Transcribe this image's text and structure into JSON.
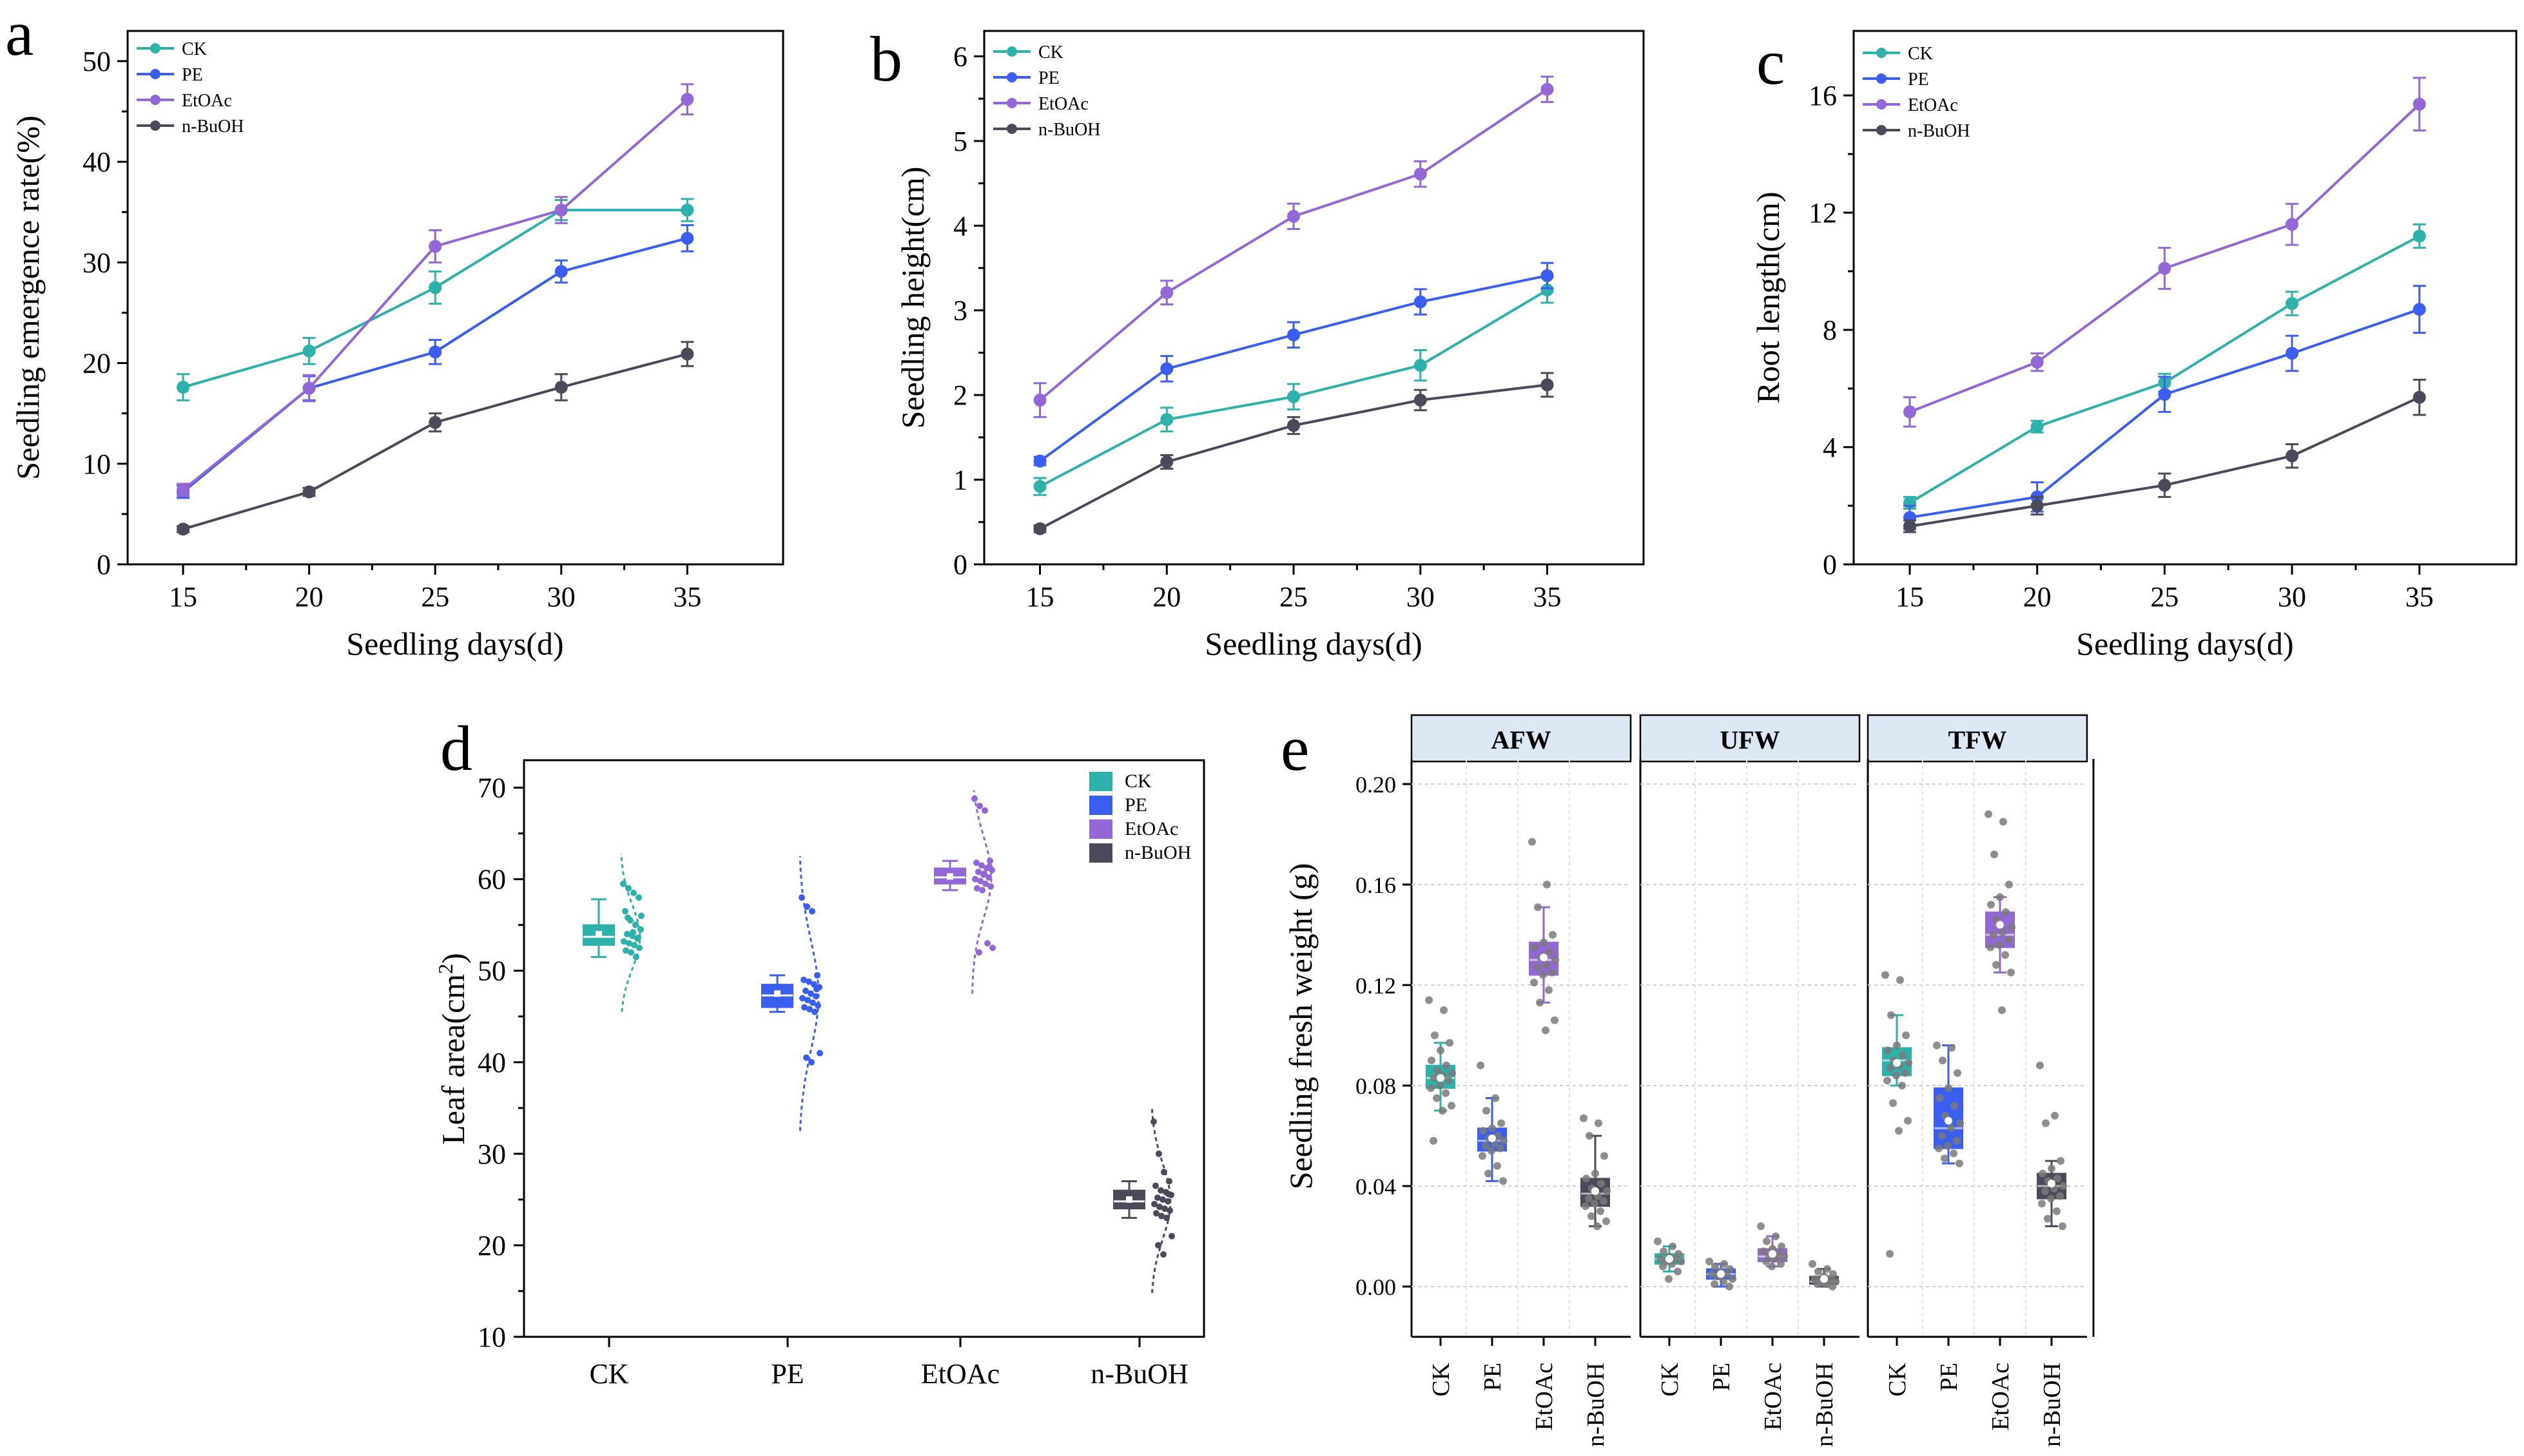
{
  "colors": {
    "CK": "#2fb1ab",
    "PE": "#3a5ff0",
    "EtOAc": "#9467d6",
    "n-BuOH": "#4a4a5a",
    "strip_fill": "#dce8f4"
  },
  "chart_data": [
    {
      "panel": "a",
      "type": "line",
      "xlabel": "Seedling days(d)",
      "ylabel": "Seedling emergence rate(%)",
      "x": [
        15,
        20,
        25,
        30,
        35
      ],
      "xticks": [
        "15",
        "20",
        "25",
        "30",
        "35"
      ],
      "yticks": [
        "0",
        "10",
        "20",
        "30",
        "40",
        "50"
      ],
      "ylim": [
        0,
        53
      ],
      "legend": "top-left",
      "series": [
        {
          "name": "CK",
          "values": [
            17.6,
            21.2,
            27.5,
            35.2,
            35.2
          ],
          "err": [
            1.3,
            1.3,
            1.6,
            1.0,
            1.1
          ]
        },
        {
          "name": "PE",
          "values": [
            7.2,
            17.5,
            21.1,
            29.1,
            32.4
          ],
          "err": [
            0.6,
            1.2,
            1.2,
            1.1,
            1.3
          ]
        },
        {
          "name": "EtOAc",
          "values": [
            7.4,
            17.5,
            31.6,
            35.2,
            46.2
          ],
          "err": [
            0.6,
            1.3,
            1.6,
            1.3,
            1.5
          ]
        },
        {
          "name": "n-BuOH",
          "values": [
            3.5,
            7.2,
            14.1,
            17.6,
            20.9
          ],
          "err": [
            0.3,
            0.4,
            0.9,
            1.3,
            1.2
          ]
        }
      ]
    },
    {
      "panel": "b",
      "type": "line",
      "xlabel": "Seedling days(d)",
      "ylabel": "Seedling height(cm)",
      "x": [
        15,
        20,
        25,
        30,
        35
      ],
      "xticks": [
        "15",
        "20",
        "25",
        "30",
        "35"
      ],
      "yticks": [
        "0",
        "1",
        "2",
        "3",
        "4",
        "5",
        "6"
      ],
      "ylim": [
        0,
        6.3
      ],
      "legend": "top-left",
      "series": [
        {
          "name": "CK",
          "values": [
            0.92,
            1.71,
            1.98,
            2.35,
            3.24
          ],
          "err": [
            0.1,
            0.14,
            0.15,
            0.18,
            0.15
          ]
        },
        {
          "name": "PE",
          "values": [
            1.22,
            2.31,
            2.71,
            3.1,
            3.41
          ],
          "err": [
            0.05,
            0.15,
            0.15,
            0.15,
            0.15
          ]
        },
        {
          "name": "EtOAc",
          "values": [
            1.94,
            3.21,
            4.11,
            4.61,
            5.61
          ],
          "err": [
            0.2,
            0.14,
            0.15,
            0.15,
            0.15
          ]
        },
        {
          "name": "n-BuOH",
          "values": [
            0.42,
            1.21,
            1.64,
            1.94,
            2.12
          ],
          "err": [
            0.04,
            0.08,
            0.1,
            0.12,
            0.14
          ]
        }
      ]
    },
    {
      "panel": "c",
      "type": "line",
      "xlabel": "Seedling days(d)",
      "ylabel": "Root length(cm)",
      "x": [
        15,
        20,
        25,
        30,
        35
      ],
      "xticks": [
        "15",
        "20",
        "25",
        "30",
        "35"
      ],
      "yticks": [
        "0",
        "4",
        "8",
        "12",
        "16"
      ],
      "ylim": [
        0,
        18.2
      ],
      "legend": "top-left",
      "series": [
        {
          "name": "CK",
          "values": [
            2.1,
            4.7,
            6.2,
            8.9,
            11.2
          ],
          "err": [
            0.2,
            0.2,
            0.3,
            0.4,
            0.4
          ]
        },
        {
          "name": "PE",
          "values": [
            1.6,
            2.3,
            5.8,
            7.2,
            8.7
          ],
          "err": [
            0.4,
            0.5,
            0.6,
            0.6,
            0.8
          ]
        },
        {
          "name": "EtOAc",
          "values": [
            5.2,
            6.9,
            10.1,
            11.6,
            15.7
          ],
          "err": [
            0.5,
            0.3,
            0.7,
            0.7,
            0.9
          ]
        },
        {
          "name": "n-BuOH",
          "values": [
            1.3,
            2.0,
            2.7,
            3.7,
            5.7
          ],
          "err": [
            0.2,
            0.3,
            0.4,
            0.4,
            0.6
          ]
        }
      ]
    },
    {
      "panel": "d",
      "type": "box",
      "xlabel": "",
      "ylabel": "Leaf area(cm²)",
      "ylabel_main": "Leaf area(cm",
      "ylabel_sup": "2",
      "ylabel_end": ")",
      "categories": [
        "CK",
        "PE",
        "EtOAc",
        "n-BuOH"
      ],
      "yticks": [
        "10",
        "20",
        "30",
        "40",
        "50",
        "60",
        "70"
      ],
      "ylim": [
        10,
        73
      ],
      "legend": "top-right",
      "groups": [
        {
          "name": "CK",
          "q1": 52.8,
          "median": 53.7,
          "q3": 55.0,
          "whisker_low": 51.5,
          "whisker_high": 57.8,
          "mean": 54.0,
          "density_min": 45.5,
          "density_max": 62.8,
          "points": [
            59.5,
            59,
            58.5,
            58,
            56.5,
            55.5,
            55,
            54.5,
            54,
            53.8,
            53.5,
            53.2,
            53,
            52.8,
            52.5,
            52.2,
            52,
            51.5,
            56,
            55.8,
            54.2,
            53.6
          ]
        },
        {
          "name": "PE",
          "q1": 46.0,
          "median": 47.3,
          "q3": 48.5,
          "whisker_low": 45.5,
          "whisker_high": 49.5,
          "mean": 47.5,
          "density_min": 32.5,
          "density_max": 62.5,
          "points": [
            58,
            57,
            56.5,
            49.5,
            49,
            48.8,
            48.5,
            48.2,
            47.8,
            47.5,
            47.2,
            47,
            46.8,
            46.5,
            46.2,
            46,
            45.8,
            45.5,
            41,
            40.5,
            40,
            48
          ]
        },
        {
          "name": "EtOAc",
          "q1": 59.5,
          "median": 60.2,
          "q3": 61.2,
          "whisker_low": 58.8,
          "whisker_high": 62.0,
          "mean": 60.3,
          "density_min": 47.5,
          "density_max": 69.7,
          "points": [
            68.8,
            68,
            67.5,
            62,
            61.8,
            61.5,
            61.2,
            61,
            60.8,
            60.5,
            60.2,
            60,
            59.8,
            59.5,
            59.2,
            59,
            58.8,
            53,
            52.5,
            52,
            60.6,
            61.4
          ]
        },
        {
          "name": "n-BuOH",
          "q1": 24.0,
          "median": 24.8,
          "q3": 26.0,
          "whisker_low": 23.0,
          "whisker_high": 27.0,
          "mean": 25.0,
          "density_min": 14.8,
          "density_max": 35.2,
          "points": [
            33.5,
            30,
            28,
            27,
            26.5,
            26,
            25.8,
            25.5,
            25.2,
            25,
            24.8,
            24.5,
            24.2,
            24,
            23.8,
            23.5,
            23.2,
            23,
            21,
            20,
            19,
            25.6
          ]
        }
      ]
    },
    {
      "panel": "e",
      "type": "box",
      "xlabel": "",
      "ylabel": "Seedling fresh weight (g)",
      "facets": [
        "AFW",
        "UFW",
        "TFW"
      ],
      "categories": [
        "CK",
        "PE",
        "EtOAc",
        "n-BuOH"
      ],
      "yticks": [
        "0.00",
        "0.04",
        "0.08",
        "0.12",
        "0.16",
        "0.20"
      ],
      "ylim": [
        -0.02,
        0.21
      ],
      "groups": [
        {
          "facet": "AFW",
          "name": "CK",
          "q1": 0.079,
          "median": 0.083,
          "q3": 0.088,
          "whisker_low": 0.07,
          "whisker_high": 0.097,
          "mean": 0.083,
          "points": [
            0.114,
            0.11,
            0.1,
            0.097,
            0.094,
            0.09,
            0.088,
            0.086,
            0.085,
            0.084,
            0.083,
            0.082,
            0.08,
            0.079,
            0.077,
            0.075,
            0.072,
            0.07,
            0.058
          ]
        },
        {
          "facet": "AFW",
          "name": "PE",
          "q1": 0.054,
          "median": 0.058,
          "q3": 0.063,
          "whisker_low": 0.042,
          "whisker_high": 0.075,
          "mean": 0.059,
          "points": [
            0.088,
            0.075,
            0.07,
            0.065,
            0.063,
            0.062,
            0.06,
            0.059,
            0.058,
            0.057,
            0.056,
            0.055,
            0.054,
            0.052,
            0.048,
            0.045,
            0.042
          ]
        },
        {
          "facet": "AFW",
          "name": "EtOAc",
          "q1": 0.124,
          "median": 0.13,
          "q3": 0.137,
          "whisker_low": 0.113,
          "whisker_high": 0.151,
          "mean": 0.131,
          "points": [
            0.177,
            0.16,
            0.151,
            0.14,
            0.137,
            0.135,
            0.133,
            0.131,
            0.13,
            0.128,
            0.127,
            0.125,
            0.124,
            0.121,
            0.118,
            0.113,
            0.106,
            0.102
          ]
        },
        {
          "facet": "AFW",
          "name": "n-BuOH",
          "q1": 0.032,
          "median": 0.037,
          "q3": 0.043,
          "whisker_low": 0.024,
          "whisker_high": 0.06,
          "mean": 0.038,
          "points": [
            0.067,
            0.065,
            0.06,
            0.052,
            0.045,
            0.043,
            0.041,
            0.039,
            0.038,
            0.036,
            0.035,
            0.034,
            0.033,
            0.032,
            0.03,
            0.028,
            0.026,
            0.024
          ]
        },
        {
          "facet": "UFW",
          "name": "CK",
          "q1": 0.009,
          "median": 0.011,
          "q3": 0.013,
          "whisker_low": 0.006,
          "whisker_high": 0.016,
          "mean": 0.011,
          "points": [
            0.018,
            0.016,
            0.014,
            0.013,
            0.012,
            0.011,
            0.011,
            0.01,
            0.01,
            0.009,
            0.008,
            0.006,
            0.003
          ]
        },
        {
          "facet": "UFW",
          "name": "PE",
          "q1": 0.003,
          "median": 0.005,
          "q3": 0.007,
          "whisker_low": 0.0,
          "whisker_high": 0.009,
          "mean": 0.005,
          "points": [
            0.01,
            0.009,
            0.008,
            0.007,
            0.006,
            0.005,
            0.005,
            0.004,
            0.003,
            0.002,
            0.001,
            0.0
          ]
        },
        {
          "facet": "UFW",
          "name": "EtOAc",
          "q1": 0.01,
          "median": 0.012,
          "q3": 0.015,
          "whisker_low": 0.008,
          "whisker_high": 0.02,
          "mean": 0.013,
          "points": [
            0.024,
            0.02,
            0.018,
            0.016,
            0.015,
            0.014,
            0.013,
            0.012,
            0.012,
            0.011,
            0.01,
            0.009,
            0.008
          ]
        },
        {
          "facet": "UFW",
          "name": "n-BuOH",
          "q1": 0.001,
          "median": 0.002,
          "q3": 0.004,
          "whisker_low": 0.0,
          "whisker_high": 0.007,
          "mean": 0.003,
          "points": [
            0.009,
            0.007,
            0.006,
            0.005,
            0.004,
            0.003,
            0.003,
            0.002,
            0.002,
            0.001,
            0.001,
            0.0
          ]
        },
        {
          "facet": "TFW",
          "name": "CK",
          "q1": 0.084,
          "median": 0.09,
          "q3": 0.095,
          "whisker_low": 0.08,
          "whisker_high": 0.108,
          "mean": 0.089,
          "points": [
            0.124,
            0.122,
            0.108,
            0.1,
            0.096,
            0.094,
            0.092,
            0.09,
            0.089,
            0.088,
            0.087,
            0.085,
            0.084,
            0.082,
            0.08,
            0.073,
            0.066,
            0.062,
            0.013
          ]
        },
        {
          "facet": "TFW",
          "name": "PE",
          "q1": 0.055,
          "median": 0.063,
          "q3": 0.079,
          "whisker_low": 0.049,
          "whisker_high": 0.096,
          "mean": 0.066,
          "points": [
            0.096,
            0.095,
            0.09,
            0.085,
            0.079,
            0.075,
            0.072,
            0.068,
            0.065,
            0.063,
            0.06,
            0.058,
            0.056,
            0.055,
            0.053,
            0.051,
            0.049
          ]
        },
        {
          "facet": "TFW",
          "name": "EtOAc",
          "q1": 0.135,
          "median": 0.14,
          "q3": 0.149,
          "whisker_low": 0.125,
          "whisker_high": 0.155,
          "mean": 0.144,
          "points": [
            0.188,
            0.185,
            0.172,
            0.16,
            0.155,
            0.152,
            0.149,
            0.146,
            0.143,
            0.141,
            0.14,
            0.138,
            0.136,
            0.135,
            0.132,
            0.128,
            0.125,
            0.11
          ]
        },
        {
          "facet": "TFW",
          "name": "n-BuOH",
          "q1": 0.035,
          "median": 0.04,
          "q3": 0.045,
          "whisker_low": 0.024,
          "whisker_high": 0.05,
          "mean": 0.041,
          "points": [
            0.088,
            0.068,
            0.065,
            0.05,
            0.047,
            0.045,
            0.043,
            0.042,
            0.04,
            0.039,
            0.038,
            0.036,
            0.035,
            0.033,
            0.03,
            0.027,
            0.024
          ]
        }
      ]
    }
  ]
}
